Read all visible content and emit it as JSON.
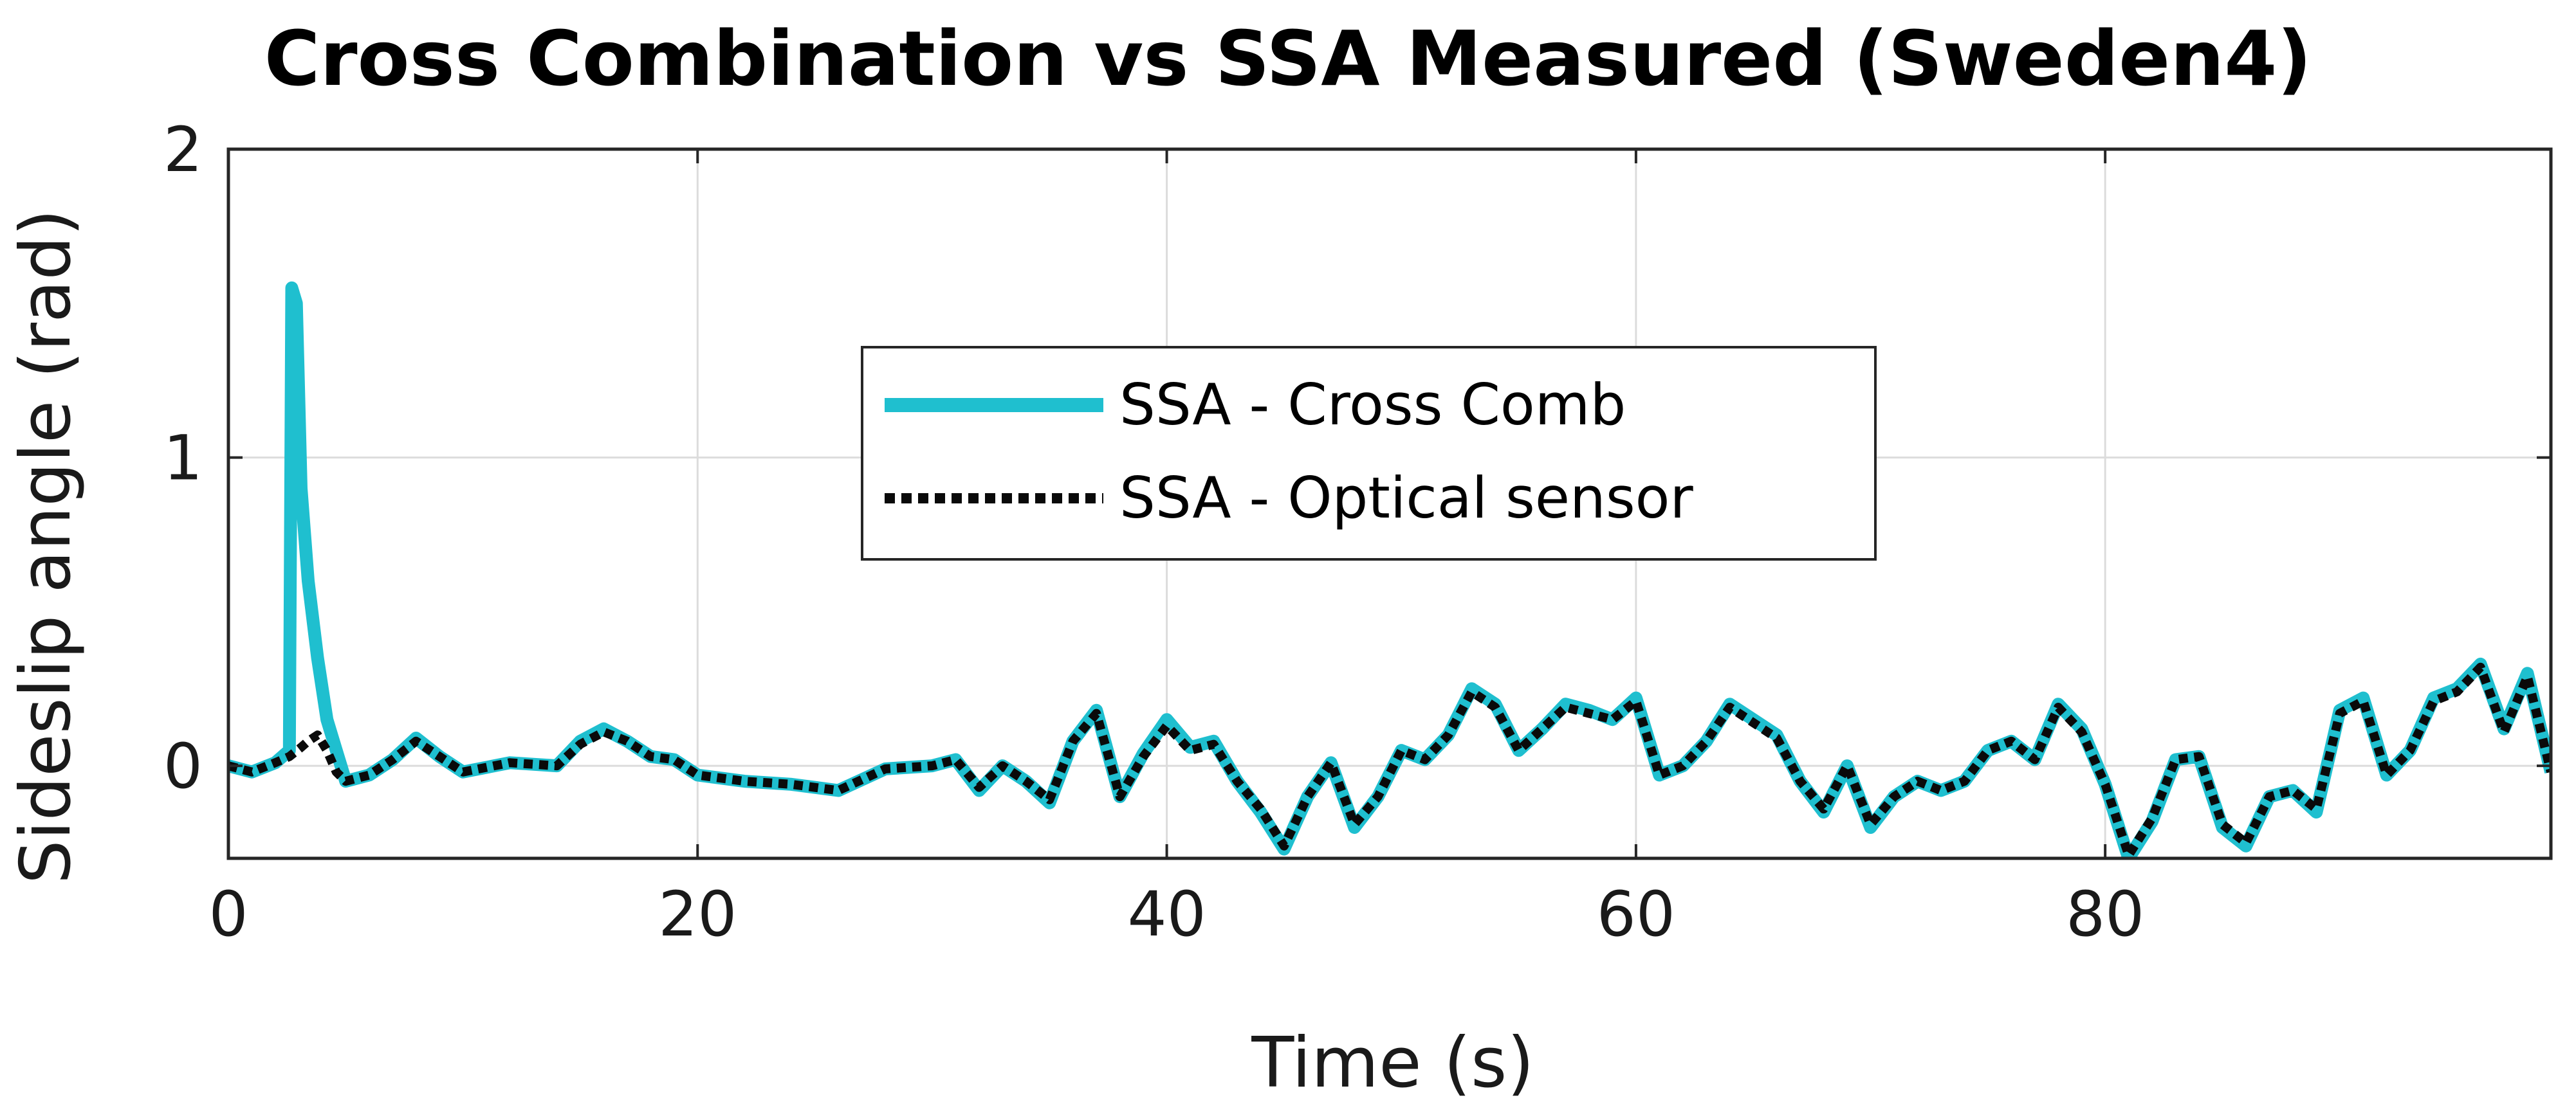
{
  "chart_data": {
    "type": "line",
    "title": "Cross Combination vs SSA Measured (Sweden4)",
    "xlabel": "Time (s)",
    "ylabel": "Sideslip angle (rad)",
    "xlim": [
      0,
      99
    ],
    "ylim": [
      -0.3,
      2
    ],
    "xticks": [
      0,
      20,
      40,
      60,
      80
    ],
    "yticks": [
      0,
      1,
      2
    ],
    "grid": true,
    "legend_position": "center",
    "series": [
      {
        "name": "SSA - Cross Comb",
        "color": "#1fbfcf",
        "style": "solid",
        "x": [
          0,
          1,
          2,
          2.6,
          2.7,
          2.9,
          3.1,
          3.4,
          3.8,
          4.2,
          4.6,
          5,
          6,
          7,
          8,
          9,
          10,
          12,
          14,
          15,
          16,
          17,
          18,
          19,
          20,
          22,
          24,
          26,
          28,
          30,
          31,
          32,
          33,
          34,
          35,
          36,
          37,
          38,
          39,
          40,
          41,
          42,
          43,
          44,
          45,
          46,
          47,
          48,
          49,
          50,
          51,
          52,
          53,
          54,
          55,
          56,
          57,
          58,
          59,
          60,
          61,
          62,
          63,
          64,
          65,
          66,
          67,
          68,
          69,
          70,
          71,
          72,
          73,
          74,
          75,
          76,
          77,
          78,
          79,
          80,
          81,
          82,
          83,
          84,
          85,
          86,
          87,
          88,
          89,
          90,
          91,
          92,
          93,
          94,
          95,
          96,
          97,
          98,
          99
        ],
        "y": [
          0,
          -0.02,
          0.01,
          0.05,
          1.55,
          1.5,
          0.9,
          0.6,
          0.35,
          0.15,
          0.05,
          -0.05,
          -0.03,
          0.02,
          0.09,
          0.03,
          -0.02,
          0.01,
          0.0,
          0.08,
          0.12,
          0.08,
          0.03,
          0.02,
          -0.03,
          -0.05,
          -0.06,
          -0.08,
          -0.01,
          0.0,
          0.02,
          -0.08,
          0.0,
          -0.05,
          -0.12,
          0.08,
          0.18,
          -0.1,
          0.04,
          0.15,
          0.06,
          0.08,
          -0.05,
          -0.15,
          -0.27,
          -0.1,
          0.01,
          -0.2,
          -0.1,
          0.05,
          0.02,
          0.1,
          0.25,
          0.2,
          0.05,
          0.12,
          0.2,
          0.18,
          0.15,
          0.22,
          -0.03,
          0.0,
          0.08,
          0.2,
          0.15,
          0.1,
          -0.05,
          -0.15,
          0.0,
          -0.2,
          -0.1,
          -0.05,
          -0.08,
          -0.05,
          0.05,
          0.08,
          0.02,
          0.2,
          0.12,
          -0.06,
          -0.3,
          -0.18,
          0.02,
          0.03,
          -0.2,
          -0.26,
          -0.1,
          -0.08,
          -0.15,
          0.18,
          0.22,
          -0.03,
          0.05,
          0.22,
          0.25,
          0.33,
          0.12,
          0.3,
          -0.02
        ]
      },
      {
        "name": "SSA - Optical sensor",
        "color": "#0a0a0a",
        "style": "dotted",
        "x": [
          0,
          1,
          2,
          2.6,
          3.1,
          3.4,
          3.8,
          4.2,
          4.6,
          5,
          6,
          7,
          8,
          9,
          10,
          12,
          14,
          15,
          16,
          17,
          18,
          19,
          20,
          22,
          24,
          26,
          28,
          30,
          31,
          32,
          33,
          34,
          35,
          36,
          37,
          38,
          39,
          40,
          41,
          42,
          43,
          44,
          45,
          46,
          47,
          48,
          49,
          50,
          51,
          52,
          53,
          54,
          55,
          56,
          57,
          58,
          59,
          60,
          61,
          62,
          63,
          64,
          65,
          66,
          67,
          68,
          69,
          70,
          71,
          72,
          73,
          74,
          75,
          76,
          77,
          78,
          79,
          80,
          81,
          82,
          83,
          84,
          85,
          86,
          87,
          88,
          89,
          90,
          91,
          92,
          93,
          94,
          95,
          96,
          97,
          98,
          99
        ],
        "y": [
          0,
          -0.02,
          0.01,
          0.03,
          0.06,
          0.08,
          0.1,
          0.05,
          -0.02,
          -0.05,
          -0.03,
          0.02,
          0.08,
          0.03,
          -0.02,
          0.01,
          0.0,
          0.07,
          0.11,
          0.08,
          0.03,
          0.02,
          -0.03,
          -0.05,
          -0.06,
          -0.08,
          -0.01,
          0.0,
          0.02,
          -0.07,
          0.0,
          -0.05,
          -0.11,
          0.08,
          0.17,
          -0.1,
          0.03,
          0.13,
          0.05,
          0.07,
          -0.05,
          -0.14,
          -0.26,
          -0.1,
          0.01,
          -0.19,
          -0.1,
          0.05,
          0.02,
          0.1,
          0.24,
          0.19,
          0.05,
          0.12,
          0.19,
          0.17,
          0.15,
          0.21,
          -0.03,
          0.0,
          0.08,
          0.19,
          0.14,
          0.09,
          -0.05,
          -0.14,
          0.0,
          -0.19,
          -0.1,
          -0.05,
          -0.08,
          -0.05,
          0.05,
          0.08,
          0.02,
          0.19,
          0.11,
          -0.06,
          -0.29,
          -0.17,
          0.02,
          0.03,
          -0.19,
          -0.25,
          -0.1,
          -0.08,
          -0.14,
          0.17,
          0.21,
          -0.03,
          0.05,
          0.21,
          0.24,
          0.32,
          0.11,
          0.29,
          -0.02
        ]
      }
    ]
  }
}
